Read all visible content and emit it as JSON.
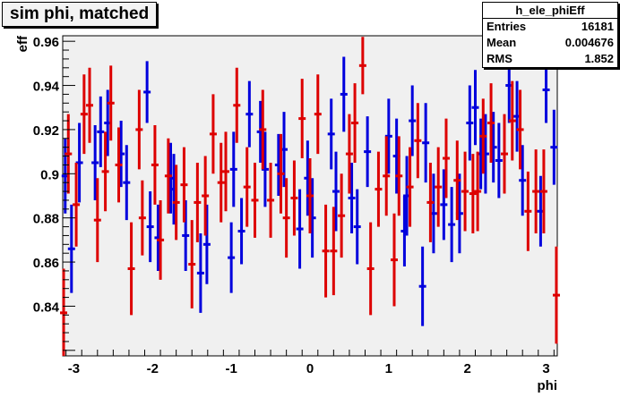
{
  "title": "sim phi, matched",
  "stats": {
    "name": "h_ele_phiEff",
    "rows": [
      {
        "label": "Entries",
        "value": "16181"
      },
      {
        "label": "Mean",
        "value": "0.004676"
      },
      {
        "label": "RMS",
        "value": "1.852"
      }
    ]
  },
  "colors": {
    "frame_bg": "#f0f0f0",
    "series1": "#0000dd",
    "series2": "#dd0000",
    "box_bg": "#f3f3f3"
  },
  "chart_data": {
    "type": "scatter",
    "xlabel": "phi",
    "ylabel": "eff",
    "xlim": [
      -3.1416,
      3.1416
    ],
    "ylim": [
      0.8175,
      0.9625
    ],
    "xticks": [
      "-3",
      "-2",
      "-1",
      "0",
      "1",
      "2",
      "3"
    ],
    "yticks": [
      "0.84",
      "0.86",
      "0.88",
      "0.9",
      "0.92",
      "0.94",
      "0.96"
    ],
    "grid": false,
    "legend": "none",
    "series": [
      {
        "color": "#0000dd",
        "marker": "error-bar",
        "points": [
          {
            "x": -3.11,
            "y": 0.899,
            "err": 0.017
          },
          {
            "x": -3.03,
            "y": 0.866,
            "err": 0.02
          },
          {
            "x": -2.93,
            "y": 0.905,
            "err": 0.018
          },
          {
            "x": -2.73,
            "y": 0.905,
            "err": 0.017
          },
          {
            "x": -2.66,
            "y": 0.919,
            "err": 0.016
          },
          {
            "x": -2.57,
            "y": 0.923,
            "err": 0.015
          },
          {
            "x": -2.4,
            "y": 0.909,
            "err": 0.015
          },
          {
            "x": -2.33,
            "y": 0.896,
            "err": 0.017
          },
          {
            "x": -2.07,
            "y": 0.937,
            "err": 0.014
          },
          {
            "x": -2.03,
            "y": 0.876,
            "err": 0.016
          },
          {
            "x": -1.93,
            "y": 0.871,
            "err": 0.015
          },
          {
            "x": -1.77,
            "y": 0.898,
            "err": 0.016
          },
          {
            "x": -1.73,
            "y": 0.893,
            "err": 0.016
          },
          {
            "x": -1.58,
            "y": 0.872,
            "err": 0.016
          },
          {
            "x": -1.39,
            "y": 0.855,
            "err": 0.018
          },
          {
            "x": -1.31,
            "y": 0.868,
            "err": 0.018
          },
          {
            "x": -1.0,
            "y": 0.862,
            "err": 0.016
          },
          {
            "x": -0.97,
            "y": 0.902,
            "err": 0.017
          },
          {
            "x": -0.87,
            "y": 0.874,
            "err": 0.015
          },
          {
            "x": -0.77,
            "y": 0.927,
            "err": 0.015
          },
          {
            "x": -0.63,
            "y": 0.919,
            "err": 0.014
          },
          {
            "x": -0.57,
            "y": 0.902,
            "err": 0.017
          },
          {
            "x": -0.4,
            "y": 0.904,
            "err": 0.014
          },
          {
            "x": -0.33,
            "y": 0.911,
            "err": 0.017
          },
          {
            "x": -0.13,
            "y": 0.875,
            "err": 0.018
          },
          {
            "x": -0.03,
            "y": 0.898,
            "err": 0.017
          },
          {
            "x": 0.03,
            "y": 0.88,
            "err": 0.018
          },
          {
            "x": 0.27,
            "y": 0.918,
            "err": 0.016
          },
          {
            "x": 0.33,
            "y": 0.892,
            "err": 0.018
          },
          {
            "x": 0.43,
            "y": 0.936,
            "err": 0.017
          },
          {
            "x": 0.53,
            "y": 0.889,
            "err": 0.016
          },
          {
            "x": 0.6,
            "y": 0.876,
            "err": 0.017
          },
          {
            "x": 0.73,
            "y": 0.91,
            "err": 0.016
          },
          {
            "x": 1.0,
            "y": 0.917,
            "err": 0.017
          },
          {
            "x": 1.1,
            "y": 0.908,
            "err": 0.017
          },
          {
            "x": 1.2,
            "y": 0.874,
            "err": 0.016
          },
          {
            "x": 1.23,
            "y": 0.89,
            "err": 0.018
          },
          {
            "x": 1.3,
            "y": 0.924,
            "err": 0.016
          },
          {
            "x": 1.43,
            "y": 0.849,
            "err": 0.018
          },
          {
            "x": 1.47,
            "y": 0.914,
            "err": 0.018
          },
          {
            "x": 1.57,
            "y": 0.882,
            "err": 0.018
          },
          {
            "x": 1.7,
            "y": 0.886,
            "err": 0.016
          },
          {
            "x": 1.8,
            "y": 0.877,
            "err": 0.017
          },
          {
            "x": 1.9,
            "y": 0.882,
            "err": 0.018
          },
          {
            "x": 2.03,
            "y": 0.923,
            "err": 0.017
          },
          {
            "x": 2.1,
            "y": 0.93,
            "err": 0.017
          },
          {
            "x": 2.17,
            "y": 0.909,
            "err": 0.016
          },
          {
            "x": 2.23,
            "y": 0.909,
            "err": 0.018
          },
          {
            "x": 2.33,
            "y": 0.912,
            "err": 0.016
          },
          {
            "x": 2.4,
            "y": 0.906,
            "err": 0.017
          },
          {
            "x": 2.53,
            "y": 0.94,
            "err": 0.017
          },
          {
            "x": 2.63,
            "y": 0.926,
            "err": 0.016
          },
          {
            "x": 2.7,
            "y": 0.897,
            "err": 0.016
          },
          {
            "x": 2.93,
            "y": 0.883,
            "err": 0.016
          },
          {
            "x": 3.0,
            "y": 0.938,
            "err": 0.015
          },
          {
            "x": 3.1,
            "y": 0.912,
            "err": 0.017
          }
        ]
      },
      {
        "color": "#dd0000",
        "marker": "error-bar",
        "points": [
          {
            "x": -3.13,
            "y": 0.837,
            "err": 0.02
          },
          {
            "x": -3.07,
            "y": 0.909,
            "err": 0.018
          },
          {
            "x": -2.97,
            "y": 0.886,
            "err": 0.019
          },
          {
            "x": -2.87,
            "y": 0.927,
            "err": 0.018
          },
          {
            "x": -2.8,
            "y": 0.931,
            "err": 0.017
          },
          {
            "x": -2.7,
            "y": 0.879,
            "err": 0.019
          },
          {
            "x": -2.6,
            "y": 0.901,
            "err": 0.018
          },
          {
            "x": -2.53,
            "y": 0.932,
            "err": 0.017
          },
          {
            "x": -2.43,
            "y": 0.904,
            "err": 0.017
          },
          {
            "x": -2.27,
            "y": 0.857,
            "err": 0.021
          },
          {
            "x": -2.17,
            "y": 0.92,
            "err": 0.018
          },
          {
            "x": -2.13,
            "y": 0.88,
            "err": 0.017
          },
          {
            "x": -1.97,
            "y": 0.904,
            "err": 0.018
          },
          {
            "x": -1.9,
            "y": 0.87,
            "err": 0.018
          },
          {
            "x": -1.8,
            "y": 0.899,
            "err": 0.017
          },
          {
            "x": -1.7,
            "y": 0.887,
            "err": 0.017
          },
          {
            "x": -1.6,
            "y": 0.895,
            "err": 0.017
          },
          {
            "x": -1.5,
            "y": 0.859,
            "err": 0.02
          },
          {
            "x": -1.43,
            "y": 0.887,
            "err": 0.018
          },
          {
            "x": -1.33,
            "y": 0.89,
            "err": 0.018
          },
          {
            "x": -1.23,
            "y": 0.918,
            "err": 0.018
          },
          {
            "x": -1.13,
            "y": 0.896,
            "err": 0.018
          },
          {
            "x": -1.07,
            "y": 0.901,
            "err": 0.018
          },
          {
            "x": -0.93,
            "y": 0.931,
            "err": 0.017
          },
          {
            "x": -0.8,
            "y": 0.894,
            "err": 0.018
          },
          {
            "x": -0.7,
            "y": 0.888,
            "err": 0.017
          },
          {
            "x": -0.6,
            "y": 0.92,
            "err": 0.018
          },
          {
            "x": -0.5,
            "y": 0.888,
            "err": 0.017
          },
          {
            "x": -0.37,
            "y": 0.9,
            "err": 0.018
          },
          {
            "x": -0.3,
            "y": 0.88,
            "err": 0.018
          },
          {
            "x": -0.2,
            "y": 0.889,
            "err": 0.017
          },
          {
            "x": -0.1,
            "y": 0.925,
            "err": 0.018
          },
          {
            "x": 0.0,
            "y": 0.89,
            "err": 0.017
          },
          {
            "x": 0.1,
            "y": 0.927,
            "err": 0.018
          },
          {
            "x": 0.2,
            "y": 0.865,
            "err": 0.021
          },
          {
            "x": 0.3,
            "y": 0.865,
            "err": 0.02
          },
          {
            "x": 0.4,
            "y": 0.881,
            "err": 0.019
          },
          {
            "x": 0.5,
            "y": 0.909,
            "err": 0.018
          },
          {
            "x": 0.57,
            "y": 0.923,
            "err": 0.018
          },
          {
            "x": 0.67,
            "y": 0.949,
            "err": 0.013
          },
          {
            "x": 0.77,
            "y": 0.857,
            "err": 0.021
          },
          {
            "x": 0.87,
            "y": 0.893,
            "err": 0.017
          },
          {
            "x": 0.97,
            "y": 0.899,
            "err": 0.018
          },
          {
            "x": 1.07,
            "y": 0.861,
            "err": 0.021
          },
          {
            "x": 1.13,
            "y": 0.899,
            "err": 0.018
          },
          {
            "x": 1.27,
            "y": 0.894,
            "err": 0.018
          },
          {
            "x": 1.37,
            "y": 0.915,
            "err": 0.017
          },
          {
            "x": 1.53,
            "y": 0.887,
            "err": 0.018
          },
          {
            "x": 1.63,
            "y": 0.894,
            "err": 0.018
          },
          {
            "x": 1.73,
            "y": 0.907,
            "err": 0.018
          },
          {
            "x": 1.87,
            "y": 0.897,
            "err": 0.018
          },
          {
            "x": 1.97,
            "y": 0.892,
            "err": 0.018
          },
          {
            "x": 2.07,
            "y": 0.891,
            "err": 0.018
          },
          {
            "x": 2.13,
            "y": 0.892,
            "err": 0.018
          },
          {
            "x": 2.2,
            "y": 0.917,
            "err": 0.017
          },
          {
            "x": 2.3,
            "y": 0.923,
            "err": 0.018
          },
          {
            "x": 2.47,
            "y": 0.909,
            "err": 0.018
          },
          {
            "x": 2.57,
            "y": 0.924,
            "err": 0.018
          },
          {
            "x": 2.67,
            "y": 0.92,
            "err": 0.018
          },
          {
            "x": 2.77,
            "y": 0.883,
            "err": 0.018
          },
          {
            "x": 2.87,
            "y": 0.892,
            "err": 0.019
          },
          {
            "x": 2.97,
            "y": 0.892,
            "err": 0.019
          },
          {
            "x": 3.13,
            "y": 0.845,
            "err": 0.022
          }
        ]
      }
    ]
  }
}
